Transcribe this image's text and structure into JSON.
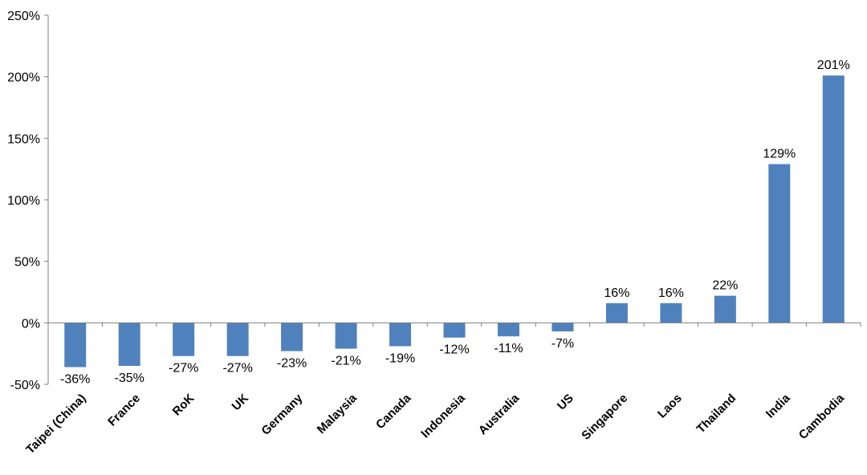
{
  "chart_data": {
    "type": "bar",
    "title": "",
    "xlabel": "",
    "ylabel": "",
    "categories": [
      "Taipei (China)",
      "France",
      "RoK",
      "UK",
      "Germany",
      "Malaysia",
      "Canada",
      "Indonesia",
      "Australia",
      "US",
      "Singapore",
      "Laos",
      "Thailand",
      "India",
      "Cambodia"
    ],
    "values": [
      -36,
      -35,
      -27,
      -27,
      -23,
      -21,
      -19,
      -12,
      -11,
      -7,
      16,
      16,
      22,
      129,
      201
    ],
    "data_labels": [
      "-36%",
      "-35%",
      "-27%",
      "-27%",
      "-23%",
      "-21%",
      "-19%",
      "-12%",
      "-11%",
      "-7%",
      "16%",
      "16%",
      "22%",
      "129%",
      "201%"
    ],
    "ylim": [
      -50,
      250
    ],
    "yticks": [
      250,
      200,
      150,
      100,
      50,
      0,
      -50
    ],
    "ytick_labels": [
      "250%",
      "200%",
      "150%",
      "100%",
      "50%",
      "0%",
      "-50%"
    ],
    "grid": false,
    "legend": "none",
    "bar_color": "#4f81bd"
  }
}
